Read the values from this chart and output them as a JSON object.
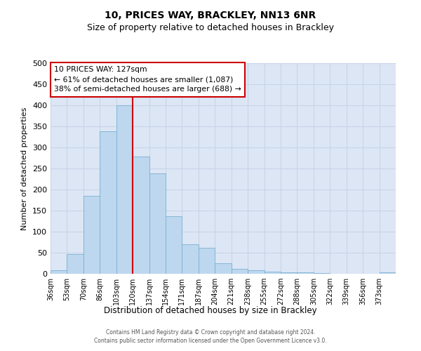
{
  "title": "10, PRICES WAY, BRACKLEY, NN13 6NR",
  "subtitle": "Size of property relative to detached houses in Brackley",
  "xlabel": "Distribution of detached houses by size in Brackley",
  "ylabel": "Number of detached properties",
  "bin_labels": [
    "36sqm",
    "53sqm",
    "70sqm",
    "86sqm",
    "103sqm",
    "120sqm",
    "137sqm",
    "154sqm",
    "171sqm",
    "187sqm",
    "204sqm",
    "221sqm",
    "238sqm",
    "255sqm",
    "272sqm",
    "288sqm",
    "305sqm",
    "322sqm",
    "339sqm",
    "356sqm",
    "373sqm"
  ],
  "bin_edges": [
    0,
    1,
    2,
    3,
    4,
    5,
    6,
    7,
    8,
    9,
    10,
    11,
    12,
    13,
    14,
    15,
    16,
    17,
    18,
    19,
    20,
    21
  ],
  "bar_values": [
    8,
    46,
    185,
    338,
    400,
    278,
    238,
    136,
    70,
    62,
    25,
    12,
    8,
    5,
    4,
    3,
    1,
    0,
    0,
    0,
    3
  ],
  "bar_color": "#bdd7ee",
  "bar_edgecolor": "#7ab0d4",
  "marker_bin": 5,
  "marker_line_color": "#cc0000",
  "annotation_text_line1": "10 PRICES WAY: 127sqm",
  "annotation_text_line2": "← 61% of detached houses are smaller (1,087)",
  "annotation_text_line3": "38% of semi-detached houses are larger (688) →",
  "annotation_box_color": "#ffffff",
  "annotation_box_edgecolor": "#cc0000",
  "ylim": [
    0,
    500
  ],
  "yticks": [
    0,
    50,
    100,
    150,
    200,
    250,
    300,
    350,
    400,
    450,
    500
  ],
  "grid_color": "#c8d4e8",
  "background_color": "#dce6f5",
  "footer_line1": "Contains HM Land Registry data © Crown copyright and database right 2024.",
  "footer_line2": "Contains public sector information licensed under the Open Government Licence v3.0.",
  "title_fontsize": 10,
  "subtitle_fontsize": 9
}
